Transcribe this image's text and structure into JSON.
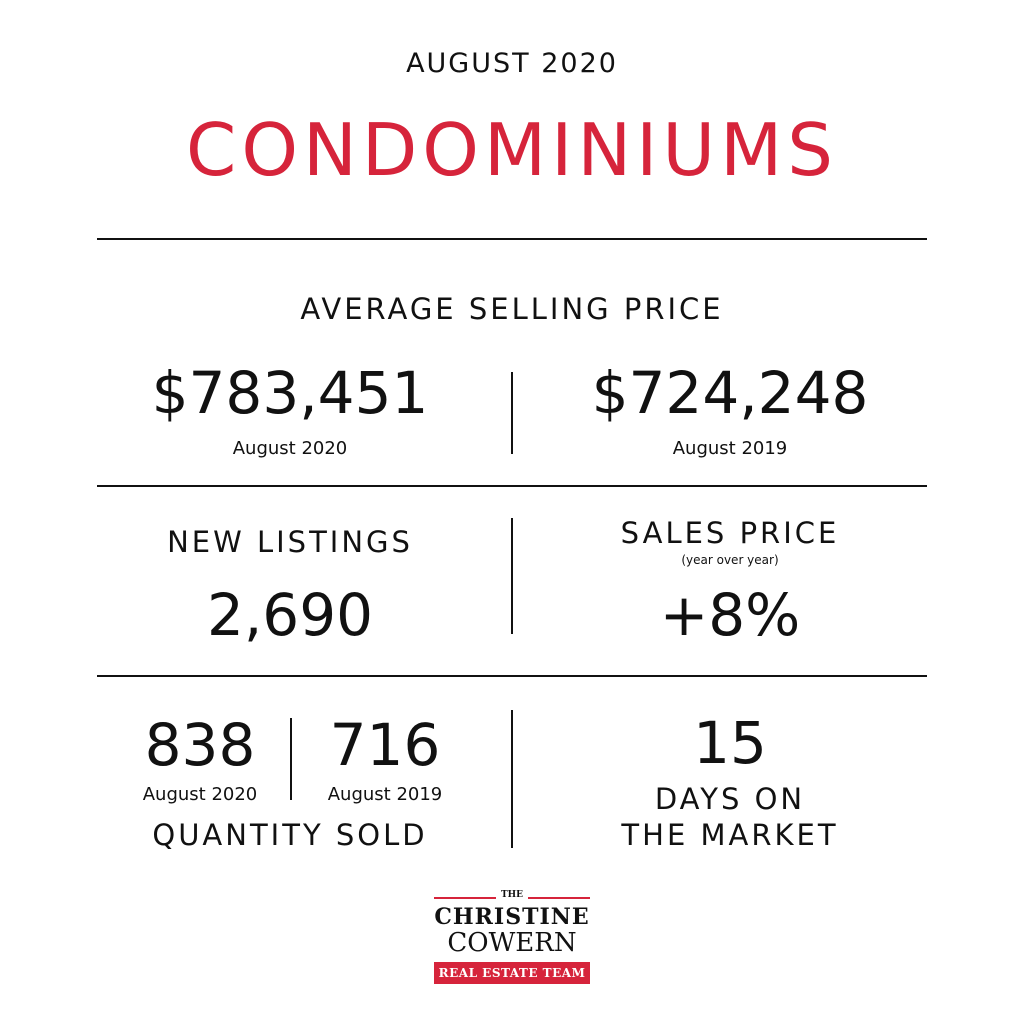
{
  "header": {
    "date": "AUGUST 2020",
    "title": "CONDOMINIUMS"
  },
  "average_selling_price": {
    "heading": "AVERAGE SELLING PRICE",
    "current": {
      "value": "$783,451",
      "label": "August 2020"
    },
    "previous": {
      "value": "$724,248",
      "label": "August 2019"
    }
  },
  "new_listings": {
    "heading": "NEW LISTINGS",
    "value": "2,690"
  },
  "sales_price": {
    "heading": "SALES PRICE",
    "subheading": "(year over year)",
    "value": "+8%"
  },
  "quantity_sold": {
    "current": {
      "value": "838",
      "label": "August 2020"
    },
    "previous": {
      "value": "716",
      "label": "August 2019"
    },
    "heading": "QUANTITY SOLD"
  },
  "days_on_market": {
    "value": "15",
    "line1": "DAYS ON",
    "line2": "THE MARKET"
  },
  "logo": {
    "the": "THE",
    "line1": "CHRISTINE",
    "line2": "COWERN",
    "tagline": "REAL ESTATE TEAM"
  },
  "colors": {
    "accent": "#d6243b",
    "text": "#111111",
    "background": "#ffffff"
  }
}
